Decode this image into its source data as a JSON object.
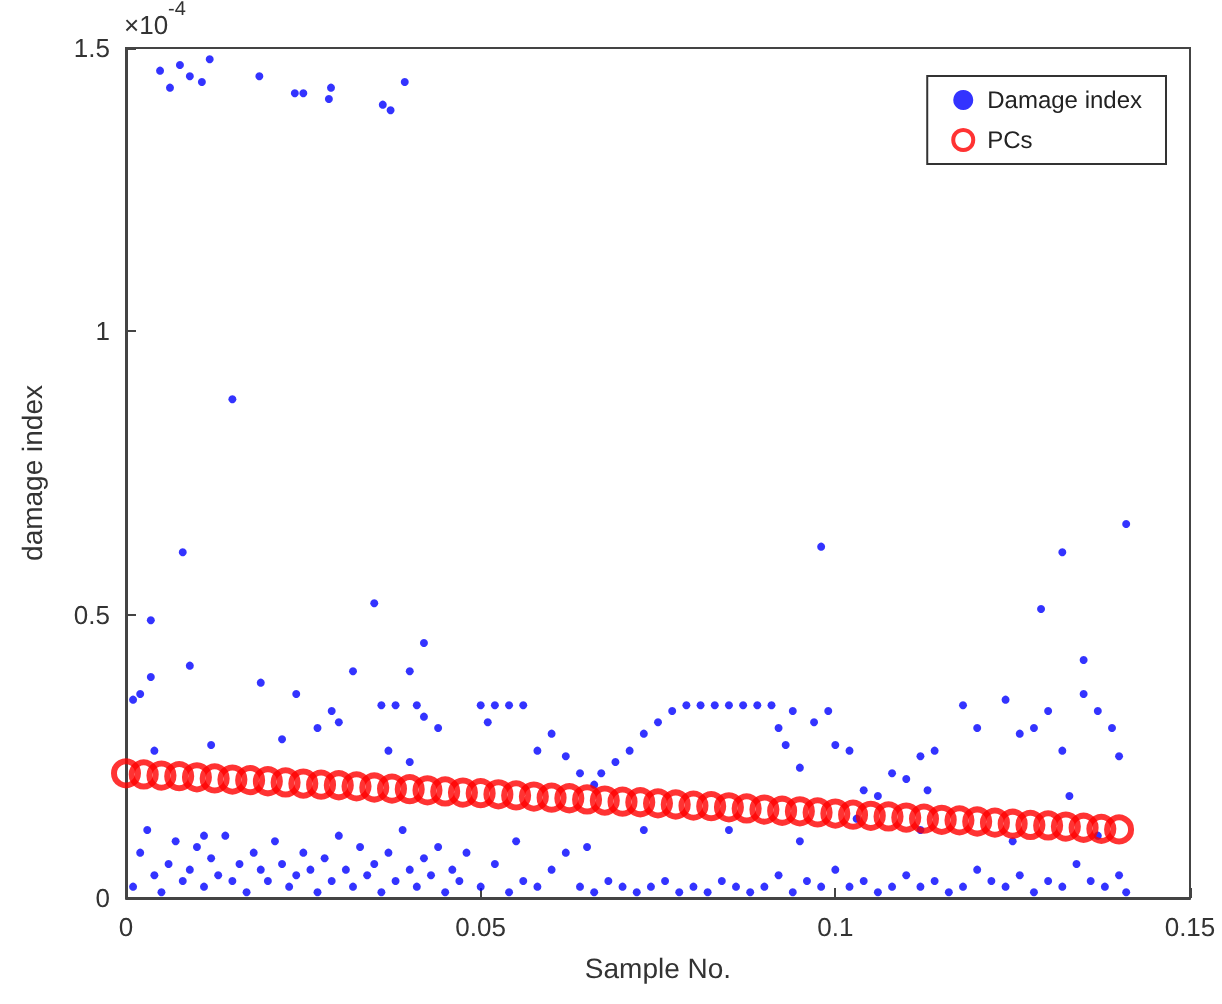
{
  "chart_data": {
    "type": "scatter",
    "xlabel": "Sample No.",
    "ylabel": "damage index",
    "annotations": [
      "×10$^{-4}$"
    ],
    "xlim": [
      0,
      0.15
    ],
    "xticks": [
      0,
      0.05,
      0.1,
      0.15
    ],
    "ylim": [
      0,
      1.5
    ],
    "yticks": [
      0,
      0.5,
      1,
      1.5
    ],
    "grid": false,
    "legend": "top right",
    "series": [
      {
        "name": "Damage index",
        "color": "#0000ff",
        "marker": "circle",
        "x": [
          0.0048,
          0.0062,
          0.0076,
          0.009,
          0.0107,
          0.0118,
          0.0188,
          0.0238,
          0.025,
          0.0286,
          0.0289,
          0.0362,
          0.0373,
          0.0393,
          0.015,
          0.008,
          0.0035,
          0.035,
          0.0035,
          0.009,
          0.042,
          0.098,
          0.132,
          0.141,
          0.129,
          0.135,
          0.001,
          0.002,
          0.003,
          0.004,
          0.005,
          0.006,
          0.007,
          0.008,
          0.009,
          0.01,
          0.011,
          0.012,
          0.013,
          0.014,
          0.015,
          0.016,
          0.017,
          0.018,
          0.019,
          0.02,
          0.021,
          0.022,
          0.023,
          0.024,
          0.025,
          0.026,
          0.027,
          0.028,
          0.029,
          0.03,
          0.031,
          0.032,
          0.033,
          0.034,
          0.035,
          0.036,
          0.037,
          0.038,
          0.039,
          0.04,
          0.041,
          0.042,
          0.043,
          0.044,
          0.045,
          0.046,
          0.047,
          0.048,
          0.05,
          0.052,
          0.054,
          0.056,
          0.058,
          0.06,
          0.062,
          0.064,
          0.066,
          0.068,
          0.07,
          0.072,
          0.074,
          0.076,
          0.078,
          0.08,
          0.082,
          0.084,
          0.086,
          0.088,
          0.09,
          0.092,
          0.094,
          0.096,
          0.098,
          0.1,
          0.102,
          0.104,
          0.106,
          0.108,
          0.11,
          0.112,
          0.114,
          0.116,
          0.118,
          0.12,
          0.122,
          0.124,
          0.126,
          0.128,
          0.13,
          0.132,
          0.134,
          0.136,
          0.138,
          0.14,
          0.141,
          0.055,
          0.065,
          0.073,
          0.085,
          0.095,
          0.103,
          0.112,
          0.125,
          0.137,
          0.001,
          0.002,
          0.004,
          0.011,
          0.012,
          0.019,
          0.022,
          0.024,
          0.027,
          0.029,
          0.03,
          0.032,
          0.036,
          0.038,
          0.04,
          0.041,
          0.042,
          0.044,
          0.04,
          0.037,
          0.05,
          0.052,
          0.054,
          0.056,
          0.051,
          0.058,
          0.06,
          0.062,
          0.064,
          0.066,
          0.067,
          0.069,
          0.071,
          0.073,
          0.075,
          0.077,
          0.079,
          0.081,
          0.083,
          0.085,
          0.087,
          0.089,
          0.091,
          0.092,
          0.093,
          0.094,
          0.095,
          0.097,
          0.099,
          0.1,
          0.102,
          0.104,
          0.106,
          0.108,
          0.11,
          0.112,
          0.114,
          0.113,
          0.118,
          0.12,
          0.124,
          0.126,
          0.128,
          0.13,
          0.132,
          0.133,
          0.135,
          0.137,
          0.139,
          0.14
        ],
        "values": [
          1.46,
          1.43,
          1.47,
          1.45,
          1.44,
          1.48,
          1.45,
          1.42,
          1.42,
          1.41,
          1.43,
          1.4,
          1.39,
          1.44,
          0.88,
          0.61,
          0.49,
          0.52,
          0.39,
          0.41,
          0.45,
          0.62,
          0.61,
          0.66,
          0.51,
          0.42,
          0.02,
          0.08,
          0.12,
          0.04,
          0.01,
          0.06,
          0.1,
          0.03,
          0.05,
          0.09,
          0.02,
          0.07,
          0.04,
          0.11,
          0.03,
          0.06,
          0.01,
          0.08,
          0.05,
          0.03,
          0.1,
          0.06,
          0.02,
          0.04,
          0.08,
          0.05,
          0.01,
          0.07,
          0.03,
          0.11,
          0.05,
          0.02,
          0.09,
          0.04,
          0.06,
          0.01,
          0.08,
          0.03,
          0.12,
          0.05,
          0.02,
          0.07,
          0.04,
          0.09,
          0.01,
          0.05,
          0.03,
          0.08,
          0.02,
          0.06,
          0.01,
          0.03,
          0.02,
          0.05,
          0.08,
          0.02,
          0.01,
          0.03,
          0.02,
          0.01,
          0.02,
          0.03,
          0.01,
          0.02,
          0.01,
          0.03,
          0.02,
          0.01,
          0.02,
          0.04,
          0.01,
          0.03,
          0.02,
          0.05,
          0.02,
          0.03,
          0.01,
          0.02,
          0.04,
          0.02,
          0.03,
          0.01,
          0.02,
          0.05,
          0.03,
          0.02,
          0.04,
          0.01,
          0.03,
          0.02,
          0.06,
          0.03,
          0.02,
          0.04,
          0.01,
          0.1,
          0.09,
          0.12,
          0.12,
          0.1,
          0.14,
          0.12,
          0.1,
          0.11,
          0.35,
          0.36,
          0.26,
          0.11,
          0.27,
          0.38,
          0.28,
          0.36,
          0.3,
          0.33,
          0.31,
          0.4,
          0.34,
          0.34,
          0.24,
          0.34,
          0.32,
          0.3,
          0.4,
          0.26,
          0.34,
          0.34,
          0.34,
          0.34,
          0.31,
          0.26,
          0.29,
          0.25,
          0.22,
          0.2,
          0.22,
          0.24,
          0.26,
          0.29,
          0.31,
          0.33,
          0.34,
          0.34,
          0.34,
          0.34,
          0.34,
          0.34,
          0.34,
          0.3,
          0.27,
          0.33,
          0.23,
          0.31,
          0.33,
          0.27,
          0.26,
          0.19,
          0.18,
          0.22,
          0.21,
          0.25,
          0.26,
          0.19,
          0.34,
          0.3,
          0.35,
          0.29,
          0.3,
          0.33,
          0.26,
          0.18,
          0.36,
          0.33,
          0.3,
          0.25
        ]
      },
      {
        "name": "PCs",
        "color": "#ff0000",
        "marker": "circle",
        "x": [
          0,
          0.0025,
          0.005,
          0.0075,
          0.01,
          0.0125,
          0.015,
          0.0175,
          0.02,
          0.0225,
          0.025,
          0.0275,
          0.03,
          0.0325,
          0.035,
          0.0375,
          0.04,
          0.0425,
          0.045,
          0.0475,
          0.05,
          0.0525,
          0.055,
          0.0575,
          0.06,
          0.0625,
          0.065,
          0.0675,
          0.07,
          0.0725,
          0.075,
          0.0775,
          0.08,
          0.0825,
          0.085,
          0.0875,
          0.09,
          0.0925,
          0.095,
          0.0975,
          0.1,
          0.1025,
          0.105,
          0.1075,
          0.11,
          0.1125,
          0.115,
          0.1175,
          0.12,
          0.1225,
          0.125,
          0.1275,
          0.13,
          0.1325,
          0.135,
          0.1375,
          0.14
        ],
        "values": [
          0.22,
          0.218,
          0.216,
          0.215,
          0.213,
          0.211,
          0.209,
          0.208,
          0.206,
          0.204,
          0.202,
          0.2,
          0.199,
          0.197,
          0.195,
          0.193,
          0.192,
          0.19,
          0.188,
          0.186,
          0.185,
          0.183,
          0.181,
          0.179,
          0.177,
          0.176,
          0.174,
          0.172,
          0.17,
          0.169,
          0.167,
          0.165,
          0.163,
          0.162,
          0.16,
          0.158,
          0.156,
          0.154,
          0.153,
          0.151,
          0.149,
          0.147,
          0.145,
          0.144,
          0.142,
          0.14,
          0.138,
          0.137,
          0.135,
          0.133,
          0.131,
          0.129,
          0.128,
          0.126,
          0.124,
          0.122,
          0.121
        ]
      }
    ]
  }
}
